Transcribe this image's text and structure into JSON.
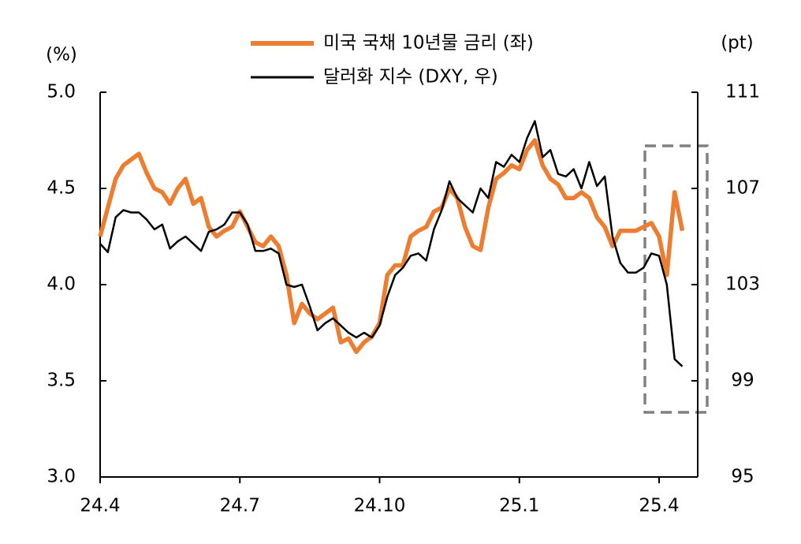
{
  "chart_data": {
    "type": "line",
    "y_label": "(%)",
    "y2_label": "(pt)",
    "categories": [
      "24.4",
      null,
      null,
      null,
      null,
      null,
      null,
      null,
      null,
      null,
      null,
      null,
      null,
      null,
      null,
      null,
      null,
      null,
      "24.7",
      null,
      null,
      null,
      null,
      null,
      null,
      null,
      null,
      null,
      null,
      null,
      null,
      null,
      null,
      null,
      null,
      null,
      "24.10",
      null,
      null,
      null,
      null,
      null,
      null,
      null,
      null,
      null,
      null,
      null,
      null,
      null,
      null,
      null,
      null,
      null,
      "25.1",
      null,
      null,
      null,
      null,
      null,
      null,
      null,
      null,
      null,
      null,
      null,
      null,
      null,
      null,
      null,
      null,
      null,
      "25.4",
      null,
      null,
      null
    ],
    "series": [
      {
        "name": "미국 국채 10년물 금리 (좌)",
        "color": "#ed7d31",
        "values": [
          4.25,
          4.4,
          4.55,
          4.62,
          4.65,
          4.68,
          4.58,
          4.5,
          4.48,
          4.42,
          4.5,
          4.55,
          4.42,
          4.45,
          4.3,
          4.25,
          4.28,
          4.3,
          4.38,
          4.3,
          4.22,
          4.2,
          4.25,
          4.2,
          4.05,
          3.8,
          3.9,
          3.85,
          3.82,
          3.85,
          3.88,
          3.7,
          3.72,
          3.65,
          3.7,
          3.73,
          3.8,
          4.05,
          4.1,
          4.1,
          4.25,
          4.28,
          4.3,
          4.38,
          4.4,
          4.5,
          4.45,
          4.3,
          4.2,
          4.18,
          4.4,
          4.55,
          4.58,
          4.62,
          4.6,
          4.7,
          4.75,
          4.62,
          4.55,
          4.52,
          4.45,
          4.45,
          4.48,
          4.45,
          4.35,
          4.3,
          4.2,
          4.28,
          4.28,
          4.28,
          4.3,
          4.32,
          4.25,
          4.05,
          4.48,
          4.28
        ]
      },
      {
        "name": "달러화 지수 (DXY, 우)",
        "color": "#000000",
        "axis": "y2",
        "values": [
          104.7,
          104.35,
          105.8,
          106.1,
          106.0,
          106.0,
          105.7,
          105.3,
          105.5,
          104.5,
          104.8,
          105.0,
          104.7,
          104.4,
          105.2,
          105.3,
          105.5,
          106.0,
          106.0,
          105.5,
          104.4,
          104.4,
          104.5,
          104.3,
          103.0,
          102.9,
          103.0,
          102.1,
          101.1,
          101.4,
          101.6,
          101.3,
          101.0,
          100.8,
          101.0,
          100.8,
          101.3,
          102.5,
          103.4,
          103.7,
          104.2,
          104.3,
          104.0,
          105.3,
          106.1,
          107.3,
          106.6,
          106.3,
          106.0,
          107.0,
          106.6,
          108.1,
          107.9,
          108.4,
          108.1,
          109.1,
          109.8,
          108.3,
          108.6,
          107.6,
          107.5,
          107.8,
          107.0,
          108.1,
          107.1,
          107.5,
          105.0,
          103.9,
          103.5,
          103.5,
          103.7,
          104.3,
          104.2,
          103.0,
          99.9,
          99.6
        ]
      }
    ],
    "ylim": [
      3.0,
      5.0
    ],
    "yticks": [
      {
        "value": 3,
        "label": "3.0"
      },
      {
        "value": 3.5,
        "label": "3.5"
      },
      {
        "value": 4,
        "label": "4.0"
      },
      {
        "value": 4.5,
        "label": "4.5"
      },
      {
        "value": 5,
        "label": "5.0"
      }
    ],
    "y2lim": [
      95,
      111
    ],
    "y2ticks": [
      95,
      99,
      103,
      107,
      111
    ],
    "legend": "top"
  }
}
